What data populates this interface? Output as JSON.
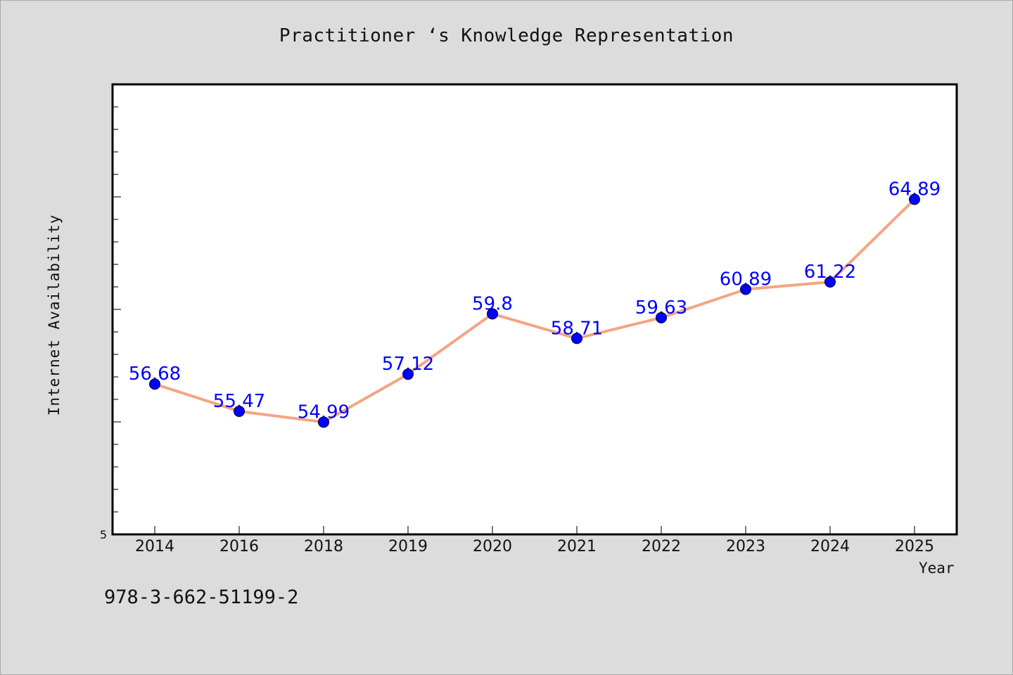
{
  "chart_data": {
    "type": "line",
    "title": "Practitioner ‘s Knowledge Representation",
    "xlabel": "Year",
    "ylabel": "Internet Availability",
    "categories": [
      "2014",
      "2016",
      "2018",
      "2019",
      "2020",
      "2021",
      "2022",
      "2023",
      "2024",
      "2025"
    ],
    "series": [
      {
        "values": [
          56.68,
          55.47,
          54.99,
          57.12,
          59.8,
          58.71,
          59.63,
          60.89,
          61.22,
          64.89
        ],
        "labels": [
          "56.68",
          "55.47",
          "54.99",
          "57.12",
          "59.8",
          "58.71",
          "59.63",
          "60.89",
          "61.22",
          "64.89"
        ],
        "line_color": "#f4a582",
        "marker_color": "#0000ff",
        "label_color": "#0000ff"
      }
    ],
    "ylim": [
      50,
      70
    ],
    "y_tick_labels": [
      "5"
    ],
    "grid": false,
    "legend": "none"
  },
  "footnote": "978-3-662-51199-2"
}
